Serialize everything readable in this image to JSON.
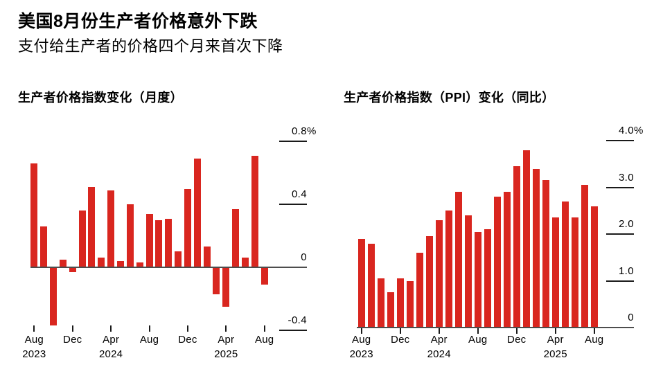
{
  "header": {
    "title": "美国8月份生产者价格意外下跌",
    "subtitle": "支付给生产者的价格四个月来首次下降"
  },
  "colors": {
    "bar": "#d9261f",
    "axis_line": "#4d4d4d",
    "tick": "#1a1a1a",
    "text": "#000000",
    "background": "#ffffff"
  },
  "chart_data": [
    {
      "type": "bar",
      "title": "生产者价格指数变化（月度）",
      "unit": "%",
      "categories": [
        "Aug 2023",
        "Sep 2023",
        "Oct 2023",
        "Nov 2023",
        "Dec 2023",
        "Jan 2024",
        "Feb 2024",
        "Mar 2024",
        "Apr 2024",
        "May 2024",
        "Jun 2024",
        "Jul 2024",
        "Aug 2024",
        "Sep 2024",
        "Oct 2024",
        "Nov 2024",
        "Dec 2024",
        "Jan 2025",
        "Feb 2025",
        "Mar 2025",
        "Apr 2025",
        "May 2025",
        "Jun 2025",
        "Jul 2025",
        "Aug 2025"
      ],
      "values": [
        0.66,
        0.26,
        -0.37,
        0.05,
        -0.03,
        0.36,
        0.51,
        0.06,
        0.49,
        0.04,
        0.4,
        0.03,
        0.34,
        0.3,
        0.31,
        0.1,
        0.5,
        0.69,
        0.13,
        -0.17,
        -0.25,
        0.37,
        0.06,
        0.71,
        -0.11
      ],
      "ylim": [
        -0.5,
        0.9
      ],
      "grid": "off",
      "legend": null,
      "value_axis_side": "right",
      "yticks": [
        {
          "value": 0.8,
          "label": "0.8%"
        },
        {
          "value": 0.4,
          "label": "0.4"
        },
        {
          "value": 0,
          "label": "0"
        },
        {
          "value": -0.4,
          "label": "-0.4"
        }
      ],
      "xticks": [
        {
          "index": 0,
          "label": "Aug",
          "year": "2023"
        },
        {
          "index": 4,
          "label": "Dec",
          "year": ""
        },
        {
          "index": 8,
          "label": "Apr",
          "year": "2024"
        },
        {
          "index": 12,
          "label": "Aug",
          "year": ""
        },
        {
          "index": 16,
          "label": "Dec",
          "year": ""
        },
        {
          "index": 20,
          "label": "Apr",
          "year": "2025"
        },
        {
          "index": 24,
          "label": "Aug",
          "year": ""
        }
      ]
    },
    {
      "type": "bar",
      "title": "生产者价格指数（PPI）变化（同比）",
      "unit": "%",
      "categories": [
        "Aug 2023",
        "Sep 2023",
        "Oct 2023",
        "Nov 2023",
        "Dec 2023",
        "Jan 2024",
        "Feb 2024",
        "Mar 2024",
        "Apr 2024",
        "May 2024",
        "Jun 2024",
        "Jul 2024",
        "Aug 2024",
        "Sep 2024",
        "Oct 2024",
        "Nov 2024",
        "Dec 2024",
        "Jan 2025",
        "Feb 2025",
        "Mar 2025",
        "Apr 2025",
        "May 2025",
        "Jun 2025",
        "Jul 2025",
        "Aug 2025"
      ],
      "values": [
        1.9,
        1.8,
        1.05,
        0.75,
        1.05,
        1.0,
        1.6,
        1.95,
        2.3,
        2.5,
        2.9,
        2.4,
        2.05,
        2.1,
        2.8,
        2.9,
        3.45,
        3.8,
        3.4,
        3.15,
        2.35,
        2.7,
        2.35,
        3.05,
        2.6
      ],
      "ylim": [
        0,
        4.2
      ],
      "grid": "off",
      "legend": null,
      "value_axis_side": "right",
      "yticks": [
        {
          "value": 4.0,
          "label": "4.0%"
        },
        {
          "value": 3.0,
          "label": "3.0"
        },
        {
          "value": 2.0,
          "label": "2.0"
        },
        {
          "value": 1.0,
          "label": "1.0"
        },
        {
          "value": 0,
          "label": "0"
        }
      ],
      "xticks": [
        {
          "index": 0,
          "label": "Aug",
          "year": "2023"
        },
        {
          "index": 4,
          "label": "Dec",
          "year": ""
        },
        {
          "index": 8,
          "label": "Apr",
          "year": "2024"
        },
        {
          "index": 12,
          "label": "Aug",
          "year": ""
        },
        {
          "index": 16,
          "label": "Dec",
          "year": ""
        },
        {
          "index": 20,
          "label": "Apr",
          "year": "2025"
        },
        {
          "index": 24,
          "label": "Aug",
          "year": ""
        }
      ]
    }
  ]
}
